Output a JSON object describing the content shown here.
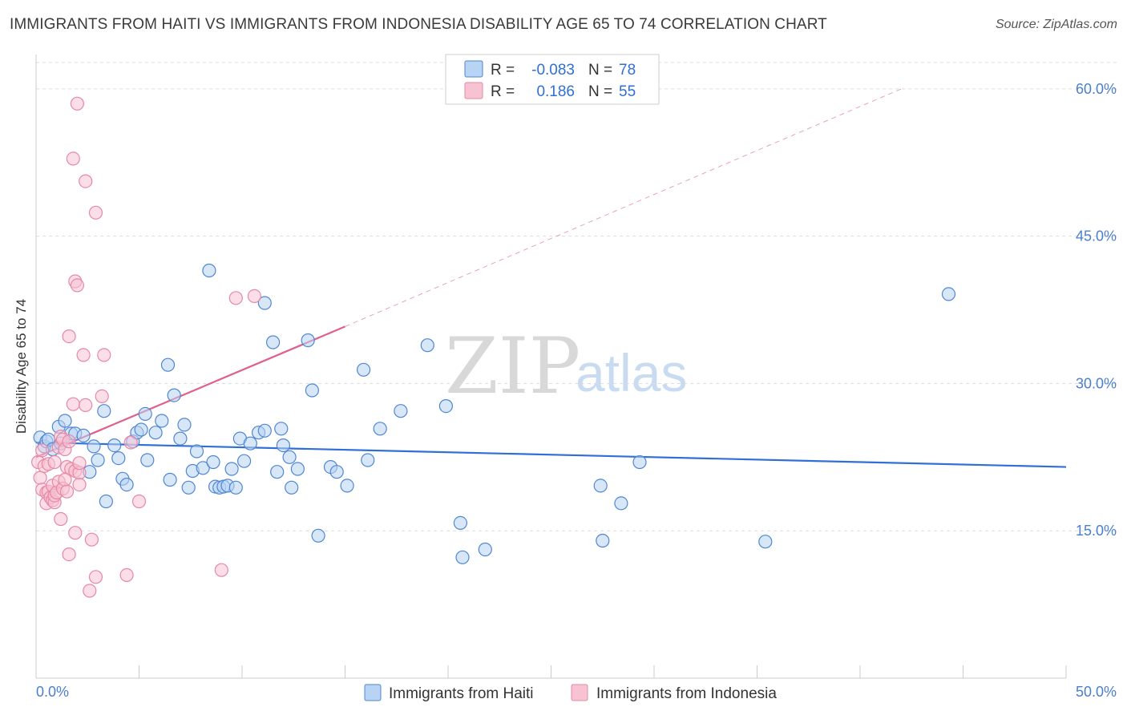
{
  "title": "IMMIGRANTS FROM HAITI VS IMMIGRANTS FROM INDONESIA DISABILITY AGE 65 TO 74 CORRELATION CHART",
  "source": "Source: ZipAtlas.com",
  "watermark": {
    "zip": "ZIP",
    "atlas": "atlas"
  },
  "colors": {
    "haiti_fill": "#b8d3f3",
    "haiti_stroke": "#4f86d4",
    "haiti_line": "#2f6fd6",
    "indonesia_fill": "#f7c3d3",
    "indonesia_stroke": "#e688a6",
    "indonesia_line": "#e0608b",
    "grid": "#dddddd",
    "tick_text": "#4a7fd0"
  },
  "legend": {
    "rows": [
      {
        "r_label": "R =",
        "r_value": "-0.083",
        "n_label": "N =",
        "n_value": "78"
      },
      {
        "r_label": "R =",
        "r_value": "0.186",
        "n_label": "N =",
        "n_value": "55"
      }
    ]
  },
  "chart_data": {
    "type": "scatter",
    "title": "IMMIGRANTS FROM HAITI VS IMMIGRANTS FROM INDONESIA DISABILITY AGE 65 TO 74 CORRELATION CHART",
    "xlabel": "",
    "ylabel": "Disability Age 65 to 74",
    "xlim": [
      0,
      50
    ],
    "ylim": [
      0,
      63.5
    ],
    "x_tick_labels": [
      "0.0%",
      "50.0%"
    ],
    "y_ticks": [
      15,
      30,
      45,
      60
    ],
    "y_tick_labels": [
      "15.0%",
      "30.0%",
      "45.0%",
      "60.0%"
    ],
    "grid": true,
    "legend_position": "top-center",
    "series": [
      {
        "name": "Immigrants from Haiti",
        "R": -0.083,
        "N": 78,
        "trend": {
          "x": [
            0,
            50
          ],
          "y": [
            24.0,
            21.5
          ],
          "dashed_extension": false
        },
        "points": [
          [
            0.2,
            24.5
          ],
          [
            0.4,
            23.6
          ],
          [
            0.5,
            24.1
          ],
          [
            0.6,
            24.3
          ],
          [
            0.8,
            23.3
          ],
          [
            1.1,
            25.6
          ],
          [
            1.2,
            23.9
          ],
          [
            1.4,
            26.2
          ],
          [
            1.7,
            24.9
          ],
          [
            1.9,
            24.9
          ],
          [
            2.3,
            24.7
          ],
          [
            2.6,
            21.0
          ],
          [
            2.8,
            23.6
          ],
          [
            3.0,
            22.2
          ],
          [
            3.3,
            27.2
          ],
          [
            3.4,
            18.0
          ],
          [
            3.8,
            23.7
          ],
          [
            4.0,
            22.4
          ],
          [
            4.2,
            20.3
          ],
          [
            4.4,
            19.7
          ],
          [
            4.7,
            24.1
          ],
          [
            4.9,
            25.0
          ],
          [
            5.1,
            25.3
          ],
          [
            5.3,
            26.9
          ],
          [
            5.4,
            22.2
          ],
          [
            5.8,
            25.0
          ],
          [
            6.1,
            26.2
          ],
          [
            6.4,
            31.9
          ],
          [
            6.5,
            20.2
          ],
          [
            6.7,
            28.8
          ],
          [
            7.0,
            24.4
          ],
          [
            7.2,
            25.8
          ],
          [
            7.4,
            19.4
          ],
          [
            7.6,
            21.1
          ],
          [
            7.8,
            23.1
          ],
          [
            8.1,
            21.4
          ],
          [
            8.4,
            41.5
          ],
          [
            8.6,
            22.0
          ],
          [
            8.7,
            19.5
          ],
          [
            8.9,
            19.4
          ],
          [
            9.1,
            19.5
          ],
          [
            9.3,
            19.6
          ],
          [
            9.5,
            21.3
          ],
          [
            9.7,
            19.4
          ],
          [
            9.9,
            24.4
          ],
          [
            10.1,
            22.1
          ],
          [
            10.4,
            23.9
          ],
          [
            10.8,
            25.0
          ],
          [
            11.1,
            25.2
          ],
          [
            11.1,
            38.2
          ],
          [
            11.5,
            34.2
          ],
          [
            11.7,
            21.0
          ],
          [
            11.9,
            25.4
          ],
          [
            12.0,
            23.7
          ],
          [
            12.3,
            22.5
          ],
          [
            12.4,
            19.4
          ],
          [
            12.7,
            21.3
          ],
          [
            13.2,
            34.4
          ],
          [
            13.4,
            29.3
          ],
          [
            13.7,
            14.5
          ],
          [
            14.3,
            21.5
          ],
          [
            14.6,
            21.0
          ],
          [
            15.1,
            19.6
          ],
          [
            15.9,
            31.4
          ],
          [
            16.1,
            22.2
          ],
          [
            16.7,
            25.4
          ],
          [
            17.7,
            27.2
          ],
          [
            19.0,
            33.9
          ],
          [
            19.9,
            27.7
          ],
          [
            20.6,
            15.8
          ],
          [
            20.7,
            12.3
          ],
          [
            21.8,
            13.1
          ],
          [
            27.4,
            19.6
          ],
          [
            27.5,
            14.0
          ],
          [
            28.4,
            17.8
          ],
          [
            29.3,
            22.0
          ],
          [
            35.4,
            13.9
          ],
          [
            44.3,
            39.1
          ]
        ]
      },
      {
        "name": "Immigrants from Indonesia",
        "R": 0.186,
        "N": 55,
        "trend": {
          "x": [
            0,
            15.0
          ],
          "y": [
            22.5,
            35.8
          ],
          "dashed_extension": true,
          "dashed_to": [
            42.0,
            60.0
          ]
        },
        "points": [
          [
            0.1,
            22.0
          ],
          [
            0.2,
            20.4
          ],
          [
            0.3,
            23.2
          ],
          [
            0.3,
            19.2
          ],
          [
            0.4,
            21.6
          ],
          [
            0.5,
            18.9
          ],
          [
            0.5,
            17.8
          ],
          [
            0.6,
            21.8
          ],
          [
            0.6,
            19.0
          ],
          [
            0.7,
            18.4
          ],
          [
            0.8,
            18.1
          ],
          [
            0.8,
            19.6
          ],
          [
            0.9,
            17.9
          ],
          [
            0.9,
            22.0
          ],
          [
            0.9,
            18.6
          ],
          [
            1.0,
            18.9
          ],
          [
            1.1,
            20.0
          ],
          [
            1.1,
            23.5
          ],
          [
            1.2,
            24.6
          ],
          [
            1.2,
            16.2
          ],
          [
            1.3,
            24.3
          ],
          [
            1.3,
            19.3
          ],
          [
            1.4,
            23.3
          ],
          [
            1.4,
            20.2
          ],
          [
            1.5,
            19.0
          ],
          [
            1.5,
            21.5
          ],
          [
            1.6,
            24.1
          ],
          [
            1.6,
            12.6
          ],
          [
            1.6,
            34.8
          ],
          [
            1.7,
            21.3
          ],
          [
            1.8,
            27.9
          ],
          [
            1.8,
            52.9
          ],
          [
            1.9,
            14.8
          ],
          [
            1.9,
            21.1
          ],
          [
            1.9,
            40.4
          ],
          [
            2.0,
            58.5
          ],
          [
            2.0,
            40.0
          ],
          [
            2.1,
            20.9
          ],
          [
            2.1,
            19.7
          ],
          [
            2.1,
            21.9
          ],
          [
            2.3,
            32.9
          ],
          [
            2.4,
            27.8
          ],
          [
            2.4,
            50.6
          ],
          [
            2.6,
            8.9
          ],
          [
            2.7,
            14.1
          ],
          [
            2.9,
            10.3
          ],
          [
            2.9,
            47.4
          ],
          [
            3.2,
            28.7
          ],
          [
            3.3,
            32.9
          ],
          [
            4.4,
            10.5
          ],
          [
            4.6,
            24.0
          ],
          [
            5.0,
            18.0
          ],
          [
            9.0,
            11.0
          ],
          [
            9.7,
            38.7
          ],
          [
            10.6,
            38.9
          ]
        ]
      }
    ]
  },
  "bottom_legend": {
    "haiti": "Immigrants from Haiti",
    "indonesia": "Immigrants from Indonesia"
  },
  "axis": {
    "x_min_label": "0.0%",
    "x_max_label": "50.0%",
    "ylabel": "Disability Age 65 to 74"
  }
}
